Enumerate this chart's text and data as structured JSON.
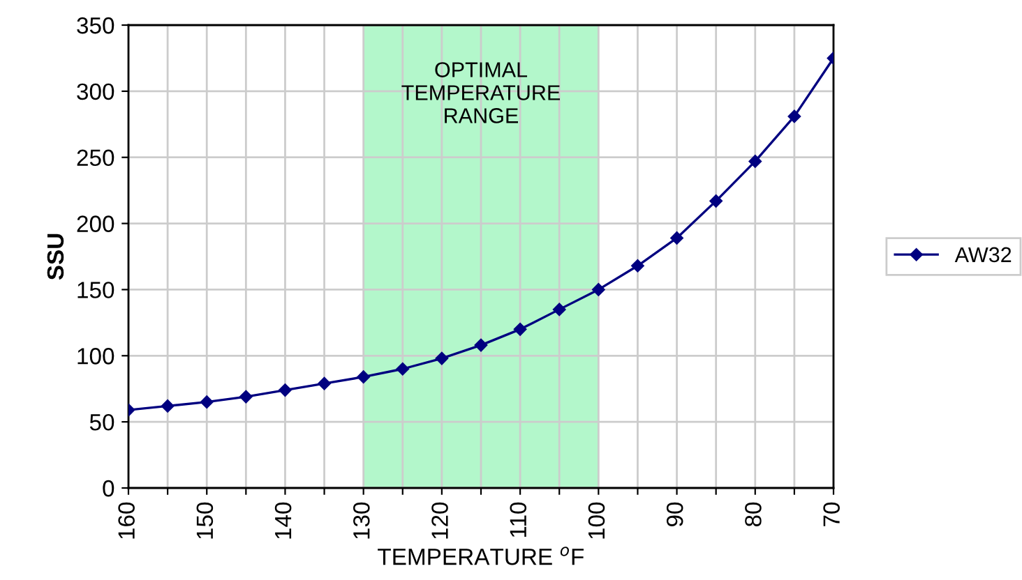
{
  "chart_data": {
    "type": "line",
    "xlabel": "TEMPERATURE $^{o}$F",
    "ylabel": "SSU",
    "x": [
      160,
      155,
      150,
      145,
      140,
      135,
      130,
      125,
      120,
      115,
      110,
      105,
      100,
      95,
      90,
      85,
      80,
      75,
      70
    ],
    "series": [
      {
        "name": "AW32",
        "color": "#000080",
        "values": [
          59,
          62,
          65,
          69,
          74,
          79,
          84,
          90,
          98,
          108,
          120,
          135,
          150,
          168,
          189,
          217,
          247,
          281,
          325
        ]
      }
    ],
    "xlim": [
      160,
      70
    ],
    "xticks": [
      160,
      {
        "value": 155,
        "label": null
      },
      150,
      {
        "value": 145,
        "label": null
      },
      140,
      {
        "value": 135,
        "label": null
      },
      130,
      {
        "value": 125,
        "label": null
      },
      120,
      {
        "value": 115,
        "label": null
      },
      110,
      {
        "value": 105,
        "label": null
      },
      100,
      {
        "value": 95,
        "label": null
      },
      90,
      {
        "value": 85,
        "label": null
      },
      80,
      {
        "value": 75,
        "label": null
      },
      70
    ],
    "ylim": [
      0,
      350
    ],
    "yticks": [
      0,
      50,
      100,
      150,
      200,
      250,
      300,
      350
    ],
    "bands": [
      {
        "axis": "x",
        "from": 130,
        "to": 100,
        "label": "OPTIMAL\nTEMPERATURE\nRANGE",
        "color": "#b3f7cb"
      }
    ],
    "grid": true,
    "legend": "right",
    "marker": "diamond",
    "line_style": "solid"
  }
}
